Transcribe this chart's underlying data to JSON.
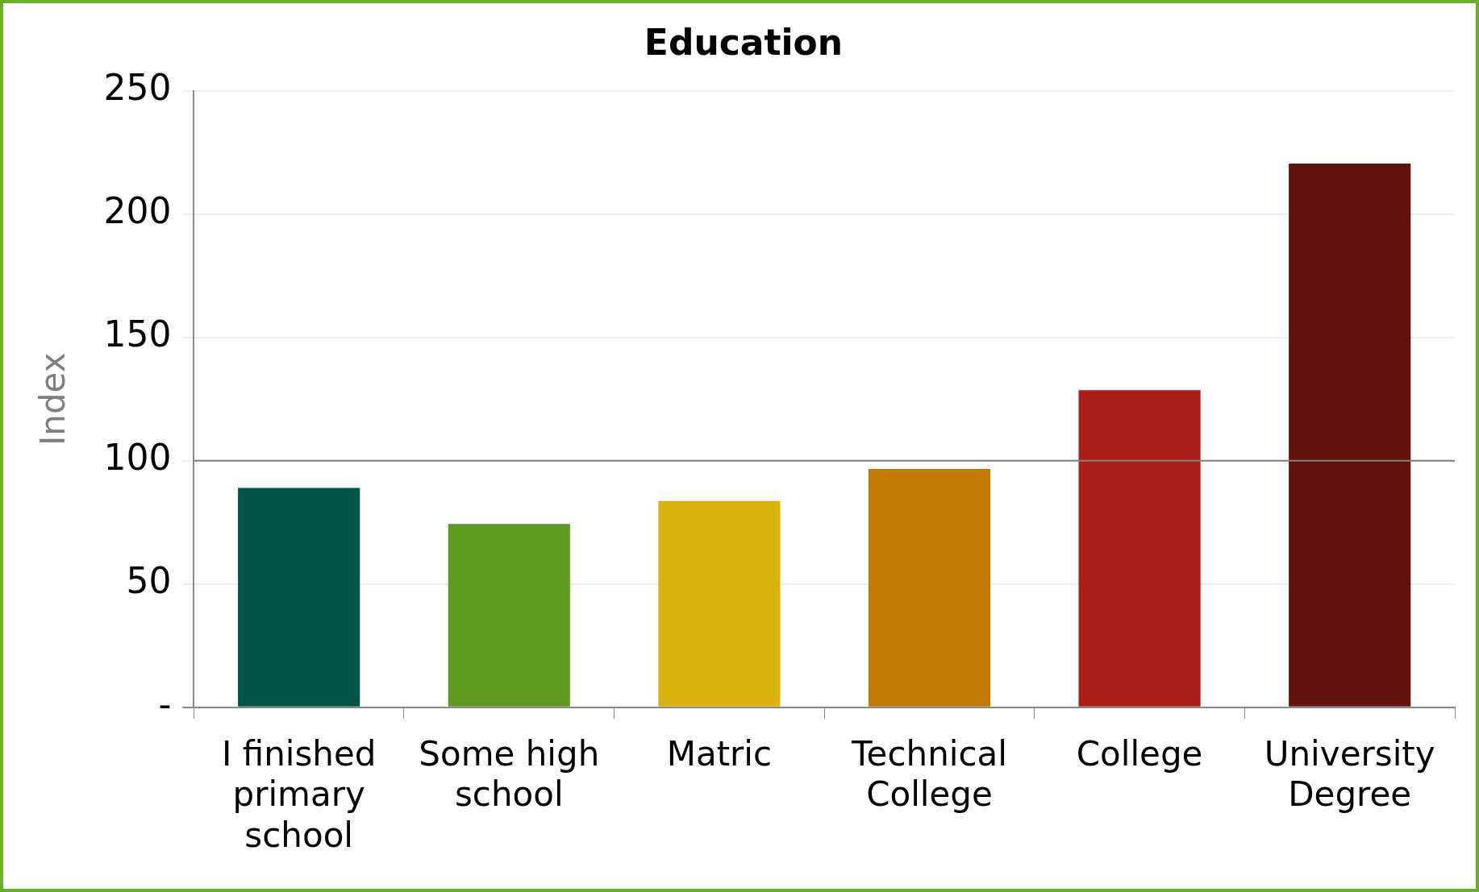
{
  "chart_data": {
    "type": "bar",
    "title": "Education",
    "ylabel": "Index",
    "categories": [
      "I finished primary school",
      "Some high school",
      "Matric",
      "Technical College",
      "College",
      "University Degree"
    ],
    "values": [
      89,
      74.4,
      83.7,
      96.7,
      128.6,
      220.5
    ],
    "colors": [
      "#025647",
      "#609a20",
      "#d9b30b",
      "#c37a00",
      "#ab1d17",
      "#62110f"
    ],
    "ylim": [
      0,
      250
    ],
    "yticks": [
      {
        "value": 0,
        "label": "-"
      },
      50,
      100,
      150,
      200,
      250
    ],
    "grid": "y",
    "ref_lines": [
      {
        "axis": "y",
        "value": 100,
        "color": "#808080"
      }
    ]
  }
}
